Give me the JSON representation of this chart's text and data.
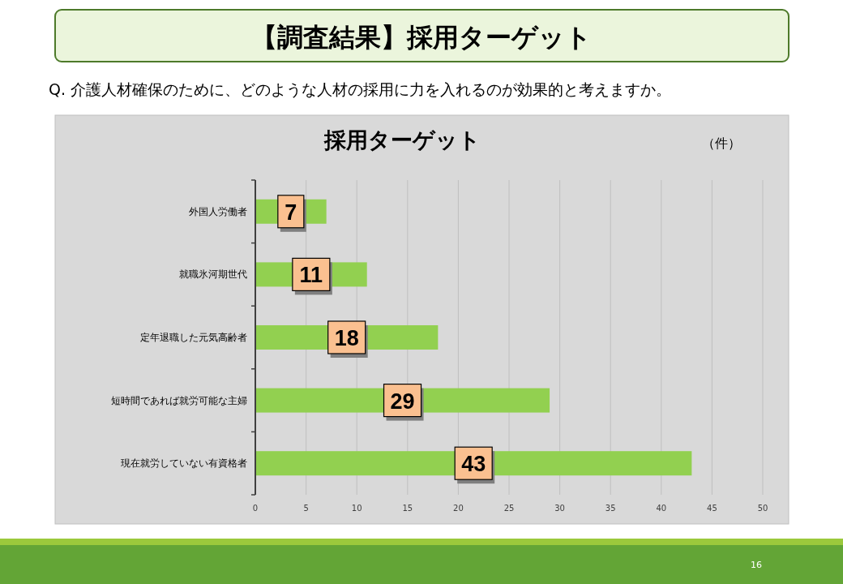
{
  "chart_data": {
    "type": "bar",
    "orientation": "horizontal",
    "title": "【調査結果】採用ターゲット",
    "subtitle": "Q. 介護人材確保のために、どのような人材の採用に力を入れるのが効果的と考えますか。",
    "xlabel": "（件）",
    "annotations": [
      "採用ターゲット",
      "16"
    ],
    "categories": [
      "外国人労働者",
      "就職氷河期世代",
      "定年退職した元気高齢者",
      "短時間であれば就労可能な主婦",
      "現在就労していない有資格者"
    ],
    "values": [
      7,
      11,
      18,
      29,
      43
    ],
    "color": "#92d050",
    "data_labels": true,
    "xlim": [
      0,
      50
    ],
    "xticks": [
      0,
      5,
      10,
      15,
      20,
      25,
      30,
      35,
      40,
      45,
      50
    ],
    "grid": "x"
  }
}
